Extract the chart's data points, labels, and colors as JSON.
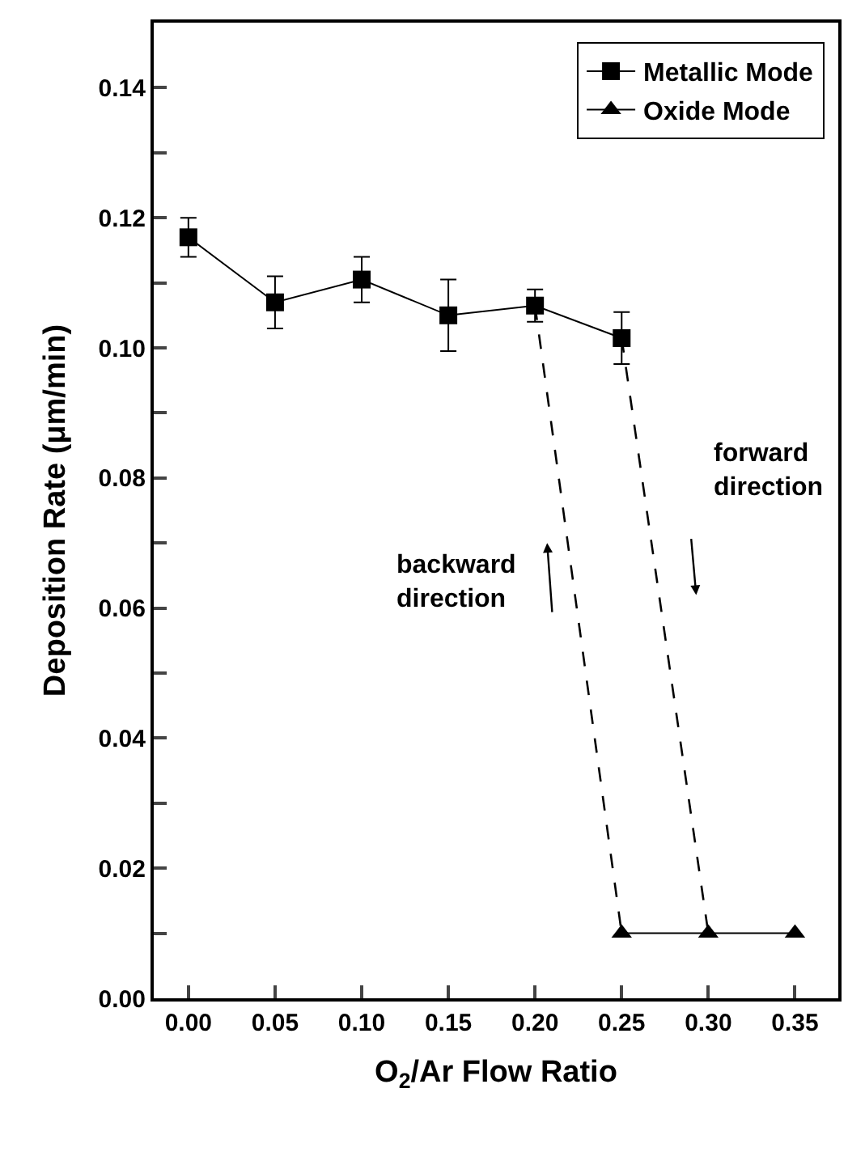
{
  "chart_data": {
    "type": "line",
    "xlabel": "O$_{2}$/Ar Flow Ratio",
    "ylabel": "Deposition Rate (μm/min)",
    "xlim": [
      -0.02,
      0.375
    ],
    "xticks": [
      {
        "value": 0,
        "label": "0.00"
      },
      0.05,
      {
        "value": 0.1,
        "label": "0.10"
      },
      0.15,
      {
        "value": 0.2,
        "label": "0.20"
      },
      0.25,
      {
        "value": 0.3,
        "label": "0.30"
      },
      0.35
    ],
    "ylim": [
      0,
      0.15
    ],
    "yticks": [
      {
        "value": 0,
        "label": "0.00"
      },
      {
        "value": 0.01,
        "label": null
      },
      0.02,
      {
        "value": 0.03,
        "label": null
      },
      0.04,
      {
        "value": 0.05,
        "label": null
      },
      0.06,
      {
        "value": 0.07,
        "label": null
      },
      0.08,
      {
        "value": 0.09,
        "label": null
      },
      {
        "value": 0.1,
        "label": "0.10"
      },
      {
        "value": 0.11,
        "label": null
      },
      0.12,
      {
        "value": 0.13,
        "label": null
      },
      0.14
    ],
    "legend": "top right",
    "line_style": "solid",
    "series": [
      {
        "name": "Metallic Mode",
        "color": "#000000",
        "marker": "square",
        "x": [
          0,
          0.05,
          0.1,
          0.15,
          0.2,
          0.25
        ],
        "values": [
          0.117,
          0.107,
          0.1105,
          0.105,
          0.1065,
          0.1015
        ],
        "errors": [
          0.003,
          0.004,
          0.0035,
          0.0055,
          0.0025,
          0.004
        ]
      },
      {
        "name": "Oxide Mode",
        "color": "#000000",
        "marker": "triangle",
        "x": [
          0.25,
          0.3,
          0.35
        ],
        "values": [
          0.01,
          0.01,
          0.01
        ]
      },
      {
        "color": "#000000",
        "marker": "none",
        "line_style": "dashed",
        "x": [
          0.2,
          0.25
        ],
        "values": [
          0.1065,
          0.01
        ]
      },
      {
        "color": "#000000",
        "marker": "none",
        "line_style": "dashed",
        "x": [
          0.25,
          0.3
        ],
        "values": [
          0.1015,
          0.01
        ]
      }
    ],
    "annotations": [
      "forward direction",
      "backward direction"
    ]
  }
}
